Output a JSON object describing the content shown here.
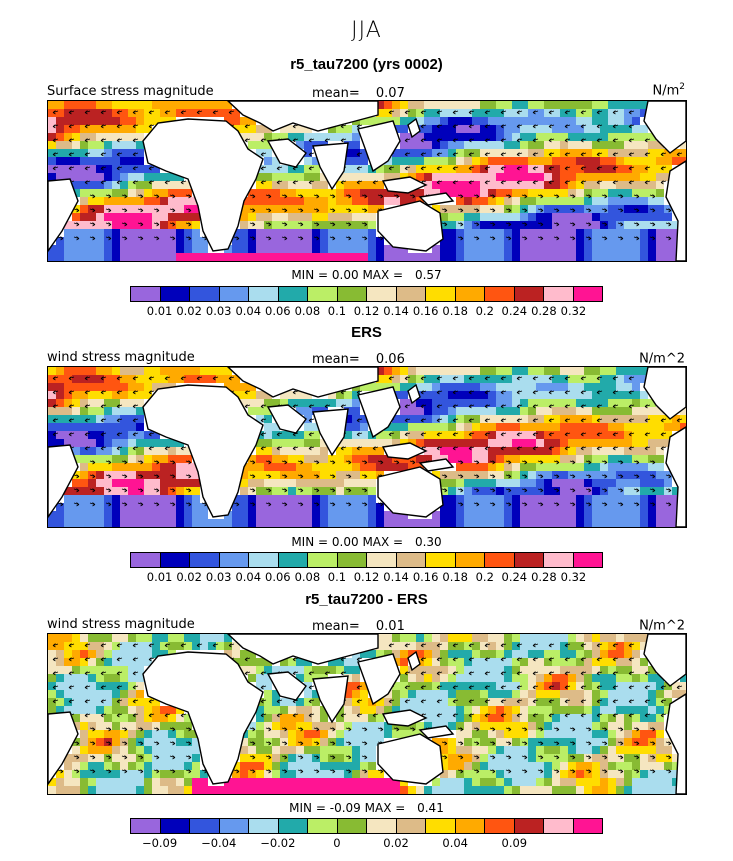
{
  "season": "JJA",
  "panels": [
    {
      "title": "r5_tau7200 (yrs 0002)",
      "field_label": "Surface stress magnitude",
      "mean_label": "mean=",
      "mean_value": "0.07",
      "units_base": "N/m",
      "units_sup": "2",
      "min_label": "MIN =",
      "min_value": "0.00",
      "max_label": "MAX =",
      "max_value": "0.57"
    },
    {
      "title": "ERS",
      "field_label": "wind stress magnitude",
      "mean_label": "mean=",
      "mean_value": "0.06",
      "units_base": "N/m^2",
      "units_sup": "",
      "min_label": "MIN =",
      "min_value": "0.00",
      "max_label": "MAX =",
      "max_value": "0.30"
    },
    {
      "title": "r5_tau7200 - ERS",
      "field_label": "wind stress magnitude",
      "mean_label": "mean=",
      "mean_value": "0.01",
      "units_base": "N/m^2",
      "units_sup": "",
      "min_label": "MIN =",
      "min_value": "-0.09",
      "max_label": "MAX =",
      "max_value": "0.41"
    }
  ],
  "colors": [
    "#9966dd",
    "#0000bb",
    "#3355dd",
    "#6699ee",
    "#aaddee",
    "#22aaaa",
    "#bbee66",
    "#88bb33",
    "#f5e6c0",
    "#ddbb88",
    "#ffdd00",
    "#ffaa00",
    "#ff5511",
    "#bb2222",
    "#ffbbcc",
    "#ff1493"
  ],
  "land_color": "#ffffff",
  "chart_data": [
    {
      "type": "heatmap",
      "title": "r5_tau7200 (yrs 0002)",
      "subtitle": "Surface stress magnitude",
      "units": "N/m^2",
      "mean": 0.07,
      "min": 0.0,
      "max": 0.57,
      "colorbar_levels": [
        "0.01",
        "0.02",
        "0.03",
        "0.04",
        "0.06",
        "0.08",
        "0.1",
        "0.12",
        "0.14",
        "0.16",
        "0.18",
        "0.2",
        "0.24",
        "0.28",
        "0.32"
      ]
    },
    {
      "type": "heatmap",
      "title": "ERS",
      "subtitle": "wind stress magnitude",
      "units": "N/m^2",
      "mean": 0.06,
      "min": 0.0,
      "max": 0.3,
      "colorbar_levels": [
        "0.01",
        "0.02",
        "0.03",
        "0.04",
        "0.06",
        "0.08",
        "0.1",
        "0.12",
        "0.14",
        "0.16",
        "0.18",
        "0.2",
        "0.24",
        "0.28",
        "0.32"
      ]
    },
    {
      "type": "heatmap",
      "title": "r5_tau7200 - ERS",
      "subtitle": "wind stress magnitude",
      "units": "N/m^2",
      "mean": 0.01,
      "min": -0.09,
      "max": 0.41,
      "colorbar_levels": [
        "−0.09",
        "",
        "−0.04",
        "",
        "−0.02",
        "",
        "0",
        "",
        "0.02",
        "",
        "0.04",
        "",
        "0.09",
        "",
        ""
      ]
    }
  ]
}
